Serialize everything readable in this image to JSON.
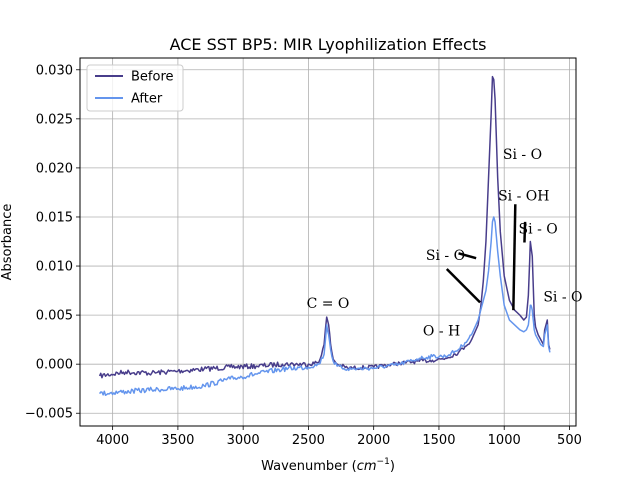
{
  "chart_data": {
    "type": "line",
    "title": "ACE SST BP5: MIR Lyophilization Effects",
    "xlabel": "Wavenumber (",
    "xlabel_math": "cm",
    "xlabel_sup": "−1",
    "xlabel_close": ")",
    "ylabel": "Absorbance",
    "xlim": [
      4250,
      450
    ],
    "ylim": [
      -0.0063,
      0.0312
    ],
    "x_reversed": true,
    "grid": true,
    "legend_position": "top-left",
    "xticks": [
      4000,
      3500,
      3000,
      2500,
      2000,
      1500,
      1000,
      500
    ],
    "xtick_labels": [
      "4000",
      "3500",
      "3000",
      "2500",
      "2000",
      "1500",
      "1000",
      "500"
    ],
    "yticks": [
      -0.005,
      0,
      0.005,
      0.01,
      0.015,
      0.02,
      0.025,
      0.03
    ],
    "ytick_labels": [
      "−0.005",
      "0.000",
      "0.005",
      "0.010",
      "0.015",
      "0.020",
      "0.025",
      "0.030"
    ],
    "series": [
      {
        "name": "Before",
        "color": "#483d8b",
        "x": [
          4100,
          3900,
          3700,
          3500,
          3300,
          3100,
          2900,
          2700,
          2500,
          2420,
          2380,
          2360,
          2345,
          2330,
          2310,
          2280,
          2200,
          2000,
          1800,
          1650,
          1550,
          1450,
          1350,
          1300,
          1250,
          1200,
          1180,
          1160,
          1140,
          1120,
          1100,
          1090,
          1080,
          1070,
          1060,
          1050,
          1030,
          1000,
          960,
          920,
          880,
          850,
          830,
          815,
          805,
          800,
          795,
          790,
          785,
          780,
          775,
          770,
          760,
          740,
          720,
          700,
          690,
          680,
          670,
          660,
          650
        ],
        "y": [
          -0.0012,
          -0.0008,
          -0.0009,
          -0.0007,
          -0.0005,
          -0.0003,
          -0.0002,
          0,
          0,
          0.0002,
          0.002,
          0.0048,
          0.004,
          0.002,
          0.0005,
          0,
          -0.0004,
          -0.0003,
          0.0001,
          0.0003,
          0.0004,
          0.0006,
          0.0012,
          0.0018,
          0.0025,
          0.004,
          0.0058,
          0.0085,
          0.0125,
          0.019,
          0.0255,
          0.0293,
          0.029,
          0.027,
          0.023,
          0.019,
          0.0135,
          0.009,
          0.0065,
          0.0055,
          0.005,
          0.0045,
          0.0048,
          0.007,
          0.0105,
          0.0125,
          0.012,
          0.0115,
          0.011,
          0.009,
          0.007,
          0.005,
          0.0038,
          0.003,
          0.0025,
          0.002,
          0.0035,
          0.004,
          0.0045,
          0.002,
          0.0015
        ]
      },
      {
        "name": "After",
        "color": "#6495ed",
        "x": [
          4100,
          3900,
          3700,
          3500,
          3300,
          3100,
          2900,
          2700,
          2500,
          2420,
          2380,
          2360,
          2345,
          2330,
          2310,
          2280,
          2200,
          2000,
          1800,
          1650,
          1550,
          1450,
          1350,
          1300,
          1250,
          1200,
          1180,
          1160,
          1140,
          1120,
          1100,
          1090,
          1080,
          1070,
          1060,
          1050,
          1030,
          1000,
          960,
          920,
          880,
          850,
          830,
          815,
          805,
          800,
          795,
          790,
          785,
          780,
          775,
          770,
          760,
          740,
          720,
          700,
          690,
          680,
          670,
          660,
          650
        ],
        "y": [
          -0.003,
          -0.0028,
          -0.0026,
          -0.0025,
          -0.0022,
          -0.0015,
          -0.001,
          -0.0005,
          -0.0003,
          0,
          0.001,
          0.004,
          0.003,
          0.0015,
          0.0003,
          -0.0002,
          -0.0005,
          -0.0004,
          0,
          0.0006,
          0.0008,
          0.0008,
          0.0015,
          0.0022,
          0.003,
          0.0045,
          0.0055,
          0.0065,
          0.0075,
          0.0095,
          0.0125,
          0.0145,
          0.015,
          0.0145,
          0.013,
          0.0115,
          0.009,
          0.006,
          0.0045,
          0.004,
          0.0035,
          0.0033,
          0.0035,
          0.004,
          0.0052,
          0.006,
          0.006,
          0.0058,
          0.0055,
          0.0048,
          0.0042,
          0.0035,
          0.003,
          0.0025,
          0.002,
          0.0018,
          0.003,
          0.0035,
          0.004,
          0.0018,
          0.0012
        ]
      }
    ],
    "annotations": [
      {
        "text": "C = O",
        "x": 2350,
        "y": 0.0057
      },
      {
        "text": "O - H",
        "x": 1480,
        "y": 0.0029
      },
      {
        "text": "Si - O",
        "x": 1450,
        "y": 0.0106
      },
      {
        "text": "Si - O",
        "x": 860,
        "y": 0.0209
      },
      {
        "text": "Si - OH",
        "x": 850,
        "y": 0.0167
      },
      {
        "text": "Si - O",
        "x": 740,
        "y": 0.0133
      },
      {
        "text": "Si - O",
        "x": 550,
        "y": 0.0064
      }
    ],
    "annotation_lines": [
      {
        "x1": 1350,
        "y1": 0.0113,
        "x2": 1215,
        "y2": 0.0108
      },
      {
        "x1": 1440,
        "y1": 0.0097,
        "x2": 1185,
        "y2": 0.0063
      },
      {
        "x1": 915,
        "y1": 0.0163,
        "x2": 930,
        "y2": 0.0055
      },
      {
        "x1": 840,
        "y1": 0.0145,
        "x2": 845,
        "y2": 0.0124
      }
    ]
  }
}
